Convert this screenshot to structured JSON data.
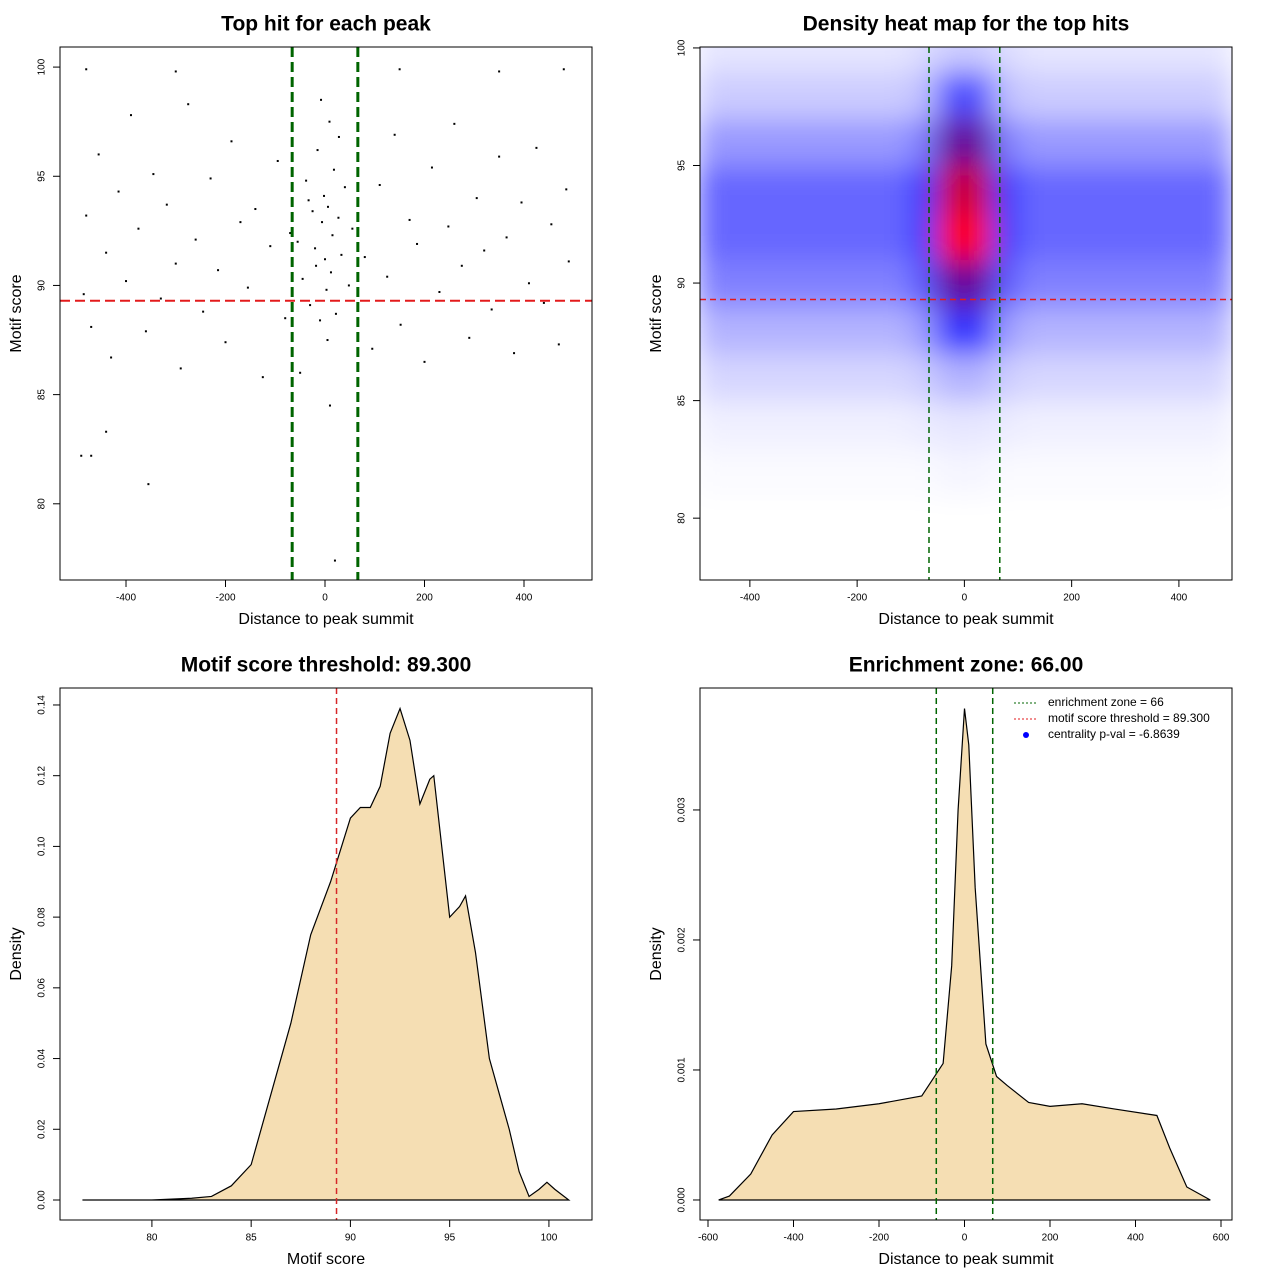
{
  "chart_data": [
    {
      "type": "scatter",
      "title": "Top hit for each peak",
      "xlabel": "Distance to peak summit",
      "ylabel": "Motif score",
      "xlim": [
        -532.7,
        536.7
      ],
      "ylim": [
        76.51,
        100.92
      ],
      "xticks": [
        -400,
        -200,
        0,
        200,
        400
      ],
      "yticks": [
        80,
        85,
        90,
        95,
        100
      ],
      "color": "#000000",
      "x": [
        -480,
        -470,
        -455,
        -440,
        -430,
        -415,
        -400,
        -390,
        -375,
        -360,
        -345,
        -330,
        -318,
        -300,
        -290,
        -275,
        -260,
        -245,
        -230,
        -215,
        -200,
        -188,
        -170,
        -155,
        -140,
        -125,
        -110,
        -95,
        -80,
        -70,
        80,
        95,
        110,
        125,
        140,
        152,
        170,
        185,
        200,
        215,
        230,
        248,
        260,
        275,
        290,
        305,
        320,
        335,
        350,
        365,
        380,
        395,
        410,
        425,
        440,
        455,
        470,
        485,
        490,
        -485,
        -55,
        -45,
        -38,
        -30,
        -25,
        -20,
        -15,
        -10,
        -6,
        -2,
        0,
        3,
        6,
        9,
        12,
        15,
        18,
        22,
        27,
        33,
        40,
        48,
        55,
        -50,
        -8,
        5,
        28,
        -33,
        10,
        -18,
        -490,
        -470,
        -440,
        -355,
        20,
        -480,
        -300,
        150,
        350,
        480
      ],
      "y": [
        93.2,
        88.1,
        96.0,
        91.5,
        86.7,
        94.3,
        90.2,
        97.8,
        92.6,
        87.9,
        95.1,
        89.4,
        93.7,
        91.0,
        86.2,
        98.3,
        92.1,
        88.8,
        94.9,
        90.7,
        87.4,
        96.6,
        92.9,
        89.9,
        93.5,
        85.8,
        91.8,
        95.7,
        88.5,
        92.4,
        91.3,
        87.1,
        94.6,
        90.4,
        96.9,
        88.2,
        93.0,
        91.9,
        86.5,
        95.4,
        89.7,
        92.7,
        97.4,
        90.9,
        87.6,
        94.0,
        91.6,
        88.9,
        95.9,
        92.2,
        86.9,
        93.8,
        90.1,
        96.3,
        89.2,
        92.8,
        87.3,
        94.4,
        91.1,
        89.6,
        92.0,
        90.3,
        94.8,
        89.1,
        93.4,
        91.7,
        96.2,
        88.4,
        92.9,
        94.1,
        91.2,
        89.8,
        93.6,
        97.5,
        90.6,
        92.3,
        95.3,
        88.7,
        93.1,
        91.4,
        94.5,
        90.0,
        92.6,
        86.0,
        98.5,
        87.5,
        96.8,
        93.9,
        84.5,
        90.9,
        82.2,
        82.2,
        83.3,
        80.9,
        77.4,
        99.9,
        99.8,
        99.9,
        99.8,
        99.9
      ],
      "vlines": [
        -66,
        66
      ],
      "vline_color": "#006400",
      "hlines": [
        89.3
      ],
      "hline_color": "#e31a1c"
    },
    {
      "type": "heatmap",
      "title": "Density heat map for the top hits",
      "xlabel": "Distance to peak summit",
      "ylabel": "Motif score",
      "xlim": [
        -493,
        499
      ],
      "ylim": [
        77.37,
        100.04
      ],
      "xticks": [
        -400,
        -200,
        0,
        200,
        400
      ],
      "yticks": [
        80,
        85,
        90,
        95,
        100
      ],
      "colormap": [
        "#ffffff",
        "#0000ff",
        "#ff0000"
      ],
      "x": [
        -475,
        -425,
        -375,
        -325,
        -275,
        -225,
        -175,
        -125,
        -75,
        -25,
        25,
        75,
        125,
        175,
        225,
        275,
        325,
        375,
        425,
        475
      ],
      "y": [
        78,
        80,
        82,
        84,
        86,
        88,
        90,
        92,
        94,
        96,
        98,
        100
      ],
      "z": [
        [
          0,
          0,
          0,
          0,
          0,
          0,
          0,
          0,
          0,
          0,
          0,
          0,
          0,
          0,
          0,
          0,
          0,
          0,
          0,
          0
        ],
        [
          0,
          0,
          0,
          0,
          0,
          0,
          0,
          0,
          0,
          0,
          0,
          0,
          0,
          0,
          0,
          0,
          0,
          0,
          0,
          0
        ],
        [
          0.01,
          0.01,
          0.01,
          0.01,
          0.01,
          0.01,
          0.01,
          0.01,
          0.01,
          0.02,
          0.02,
          0.01,
          0.01,
          0.01,
          0.01,
          0.01,
          0.01,
          0.01,
          0.01,
          0.01
        ],
        [
          0.03,
          0.03,
          0.03,
          0.03,
          0.03,
          0.03,
          0.03,
          0.03,
          0.04,
          0.05,
          0.05,
          0.04,
          0.03,
          0.03,
          0.03,
          0.03,
          0.03,
          0.03,
          0.03,
          0.03
        ],
        [
          0.08,
          0.08,
          0.08,
          0.08,
          0.08,
          0.08,
          0.08,
          0.08,
          0.1,
          0.15,
          0.15,
          0.1,
          0.08,
          0.08,
          0.08,
          0.08,
          0.08,
          0.08,
          0.08,
          0.08
        ],
        [
          0.15,
          0.15,
          0.15,
          0.15,
          0.15,
          0.15,
          0.15,
          0.15,
          0.2,
          0.4,
          0.4,
          0.2,
          0.15,
          0.15,
          0.15,
          0.15,
          0.15,
          0.15,
          0.15,
          0.15
        ],
        [
          0.25,
          0.25,
          0.25,
          0.25,
          0.25,
          0.25,
          0.25,
          0.25,
          0.33,
          0.7,
          0.7,
          0.33,
          0.25,
          0.25,
          0.25,
          0.25,
          0.25,
          0.25,
          0.25,
          0.25
        ],
        [
          0.3,
          0.3,
          0.3,
          0.3,
          0.3,
          0.3,
          0.3,
          0.3,
          0.39,
          1.0,
          1.0,
          0.39,
          0.3,
          0.3,
          0.3,
          0.3,
          0.3,
          0.3,
          0.3,
          0.3
        ],
        [
          0.3,
          0.3,
          0.3,
          0.3,
          0.3,
          0.3,
          0.3,
          0.3,
          0.39,
          0.9,
          0.9,
          0.39,
          0.3,
          0.3,
          0.3,
          0.3,
          0.3,
          0.3,
          0.3,
          0.3
        ],
        [
          0.2,
          0.2,
          0.2,
          0.2,
          0.2,
          0.2,
          0.2,
          0.2,
          0.26,
          0.7,
          0.7,
          0.26,
          0.2,
          0.2,
          0.2,
          0.2,
          0.2,
          0.2,
          0.2,
          0.2
        ],
        [
          0.1,
          0.1,
          0.1,
          0.1,
          0.1,
          0.1,
          0.1,
          0.1,
          0.13,
          0.35,
          0.35,
          0.13,
          0.1,
          0.1,
          0.1,
          0.1,
          0.1,
          0.1,
          0.1,
          0.1
        ],
        [
          0.05,
          0.05,
          0.05,
          0.05,
          0.05,
          0.05,
          0.05,
          0.05,
          0.07,
          0.1,
          0.1,
          0.07,
          0.05,
          0.05,
          0.05,
          0.05,
          0.05,
          0.05,
          0.05,
          0.05
        ]
      ],
      "vlines": [
        -66,
        66
      ],
      "vline_color": "#006400",
      "hlines": [
        89.3
      ],
      "hline_color": "#e31a1c"
    },
    {
      "type": "area",
      "title": "Motif score threshold: 89.300",
      "xlabel": "Motif score",
      "ylabel": "Density",
      "xlim": [
        75.37,
        102.17
      ],
      "ylim": [
        -0.00566,
        0.1448
      ],
      "xticks": [
        80,
        85,
        90,
        95,
        100
      ],
      "yticks": [
        {
          "value": 0,
          "label": "0.00"
        },
        0.02,
        0.04,
        0.06,
        0.08,
        {
          "value": 0.1,
          "label": "0.10"
        },
        0.12,
        0.14
      ],
      "color": "#f5deb3",
      "x": [
        76.5,
        80,
        82,
        83,
        84,
        85,
        86,
        87,
        88,
        89,
        90,
        90.5,
        91,
        91.5,
        92,
        92.5,
        93,
        93.5,
        94,
        94.2,
        94.5,
        95,
        95.5,
        95.8,
        96.3,
        97,
        97.5,
        98,
        98.5,
        99,
        99.5,
        99.9,
        100.3,
        101
      ],
      "y": [
        0,
        0,
        0.0005,
        0.001,
        0.004,
        0.01,
        0.03,
        0.05,
        0.075,
        0.09,
        0.108,
        0.111,
        0.111,
        0.117,
        0.132,
        0.139,
        0.13,
        0.112,
        0.119,
        0.12,
        0.105,
        0.08,
        0.083,
        0.086,
        0.07,
        0.04,
        0.03,
        0.02,
        0.008,
        0.001,
        0.003,
        0.005,
        0.003,
        0
      ],
      "vlines": [
        89.3
      ],
      "vline_color": "#d62728"
    },
    {
      "type": "area",
      "title": "Enrichment zone: 66.00",
      "xlabel": "Distance to peak summit",
      "ylabel": "Density",
      "xlim": [
        -618.7,
        625.7
      ],
      "ylim": [
        -0.000154,
        0.003938
      ],
      "xticks": [
        -600,
        -400,
        -200,
        0,
        200,
        400,
        600
      ],
      "yticks": [
        {
          "value": 0,
          "label": "0.000"
        },
        0.001,
        0.002,
        0.003
      ],
      "color": "#f5deb3",
      "x": [
        -575,
        -550,
        -500,
        -450,
        -400,
        -300,
        -200,
        -100,
        -50,
        -30,
        -15,
        0,
        10,
        25,
        50,
        75,
        100,
        150,
        200,
        275,
        350,
        450,
        480,
        520,
        575
      ],
      "y": [
        0,
        3e-05,
        0.0002,
        0.0005,
        0.00068,
        0.0007,
        0.00074,
        0.0008,
        0.00105,
        0.0018,
        0.003,
        0.00378,
        0.0035,
        0.0024,
        0.0012,
        0.00095,
        0.00088,
        0.00075,
        0.00072,
        0.00074,
        0.0007,
        0.00065,
        0.0004,
        0.0001,
        0
      ],
      "vlines": [
        -66,
        66
      ],
      "vline_color": "#006400",
      "legend_position": "top-right",
      "legend": [
        {
          "label": "enrichment zone = 66",
          "color": "#006400",
          "style": "dotted"
        },
        {
          "label": "motif score threshold = 89.300",
          "color": "#e31a1c",
          "style": "dotted"
        },
        {
          "label": "centrality p-val = -6.8639",
          "color": "#0000ff",
          "style": "point"
        }
      ]
    }
  ]
}
